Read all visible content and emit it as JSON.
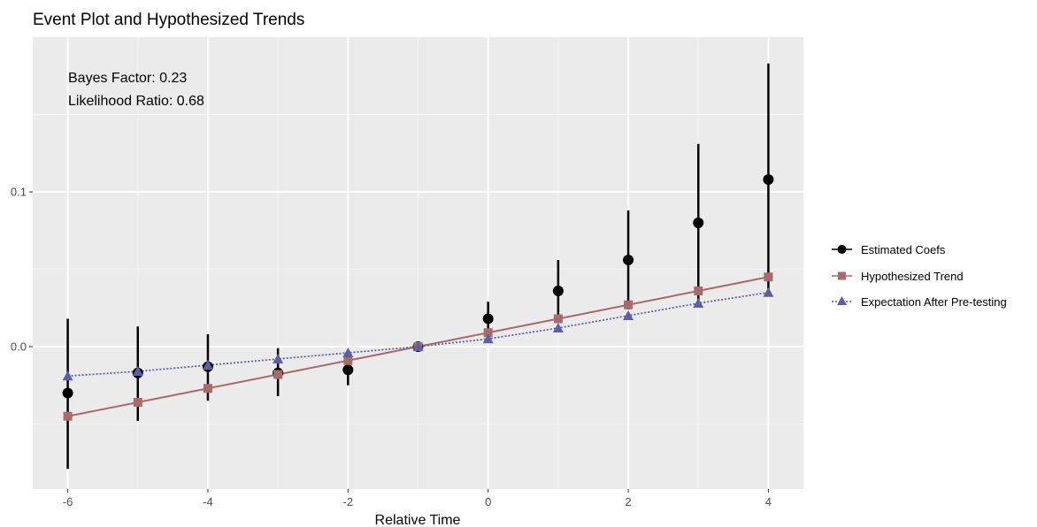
{
  "chart_data": {
    "type": "line",
    "title": "Event Plot and Hypothesized Trends",
    "xlabel": "Relative Time",
    "ylabel": "",
    "xlim": [
      -6.5,
      4.5
    ],
    "ylim": [
      -0.092,
      0.2
    ],
    "x_ticks": [
      -6,
      -4,
      -2,
      0,
      2,
      4
    ],
    "x_tick_labels": [
      "-6",
      "-4",
      "-2",
      "0",
      "2",
      "4"
    ],
    "y_ticks": [
      0.0,
      0.1
    ],
    "y_tick_labels": [
      "0.0",
      "0.1"
    ],
    "grid": true,
    "legend_position": "right",
    "annotations": [
      "Bayes Factor: 0.23",
      "Likelihood Ratio: 0.68"
    ],
    "x": [
      -6,
      -5,
      -4,
      -3,
      -2,
      -1,
      0,
      1,
      2,
      3,
      4
    ],
    "series": [
      {
        "name": "Estimated Coefs",
        "kind": "points_with_errorbars",
        "marker": "circle",
        "color": "#000000",
        "values": [
          -0.03,
          -0.017,
          -0.013,
          -0.017,
          -0.015,
          0.0,
          0.018,
          0.036,
          0.056,
          0.08,
          0.108
        ],
        "lower": [
          -0.079,
          -0.048,
          -0.035,
          -0.032,
          -0.025,
          0.0,
          0.006,
          0.017,
          0.024,
          0.03,
          0.035
        ],
        "upper": [
          0.018,
          0.013,
          0.008,
          -0.001,
          -0.005,
          0.0,
          0.029,
          0.056,
          0.088,
          0.131,
          0.183
        ]
      },
      {
        "name": "Hypothesized Trend",
        "kind": "line",
        "marker": "square",
        "color": "#a86b6b",
        "values": [
          -0.045,
          -0.036,
          -0.027,
          -0.018,
          -0.009,
          0.0,
          0.009,
          0.018,
          0.027,
          0.036,
          0.045
        ]
      },
      {
        "name": "Expectation After Pre-testing",
        "kind": "line",
        "dashed": true,
        "marker": "triangle",
        "color": "#5a5fa8",
        "values": [
          -0.019,
          -0.016,
          -0.012,
          -0.008,
          -0.004,
          0.0,
          0.005,
          0.012,
          0.02,
          0.028,
          0.035
        ]
      }
    ],
    "colors": {
      "panel_background": "#ebebeb",
      "grid_major": "#ffffff",
      "grid_minor": "#f5f5f5"
    }
  }
}
